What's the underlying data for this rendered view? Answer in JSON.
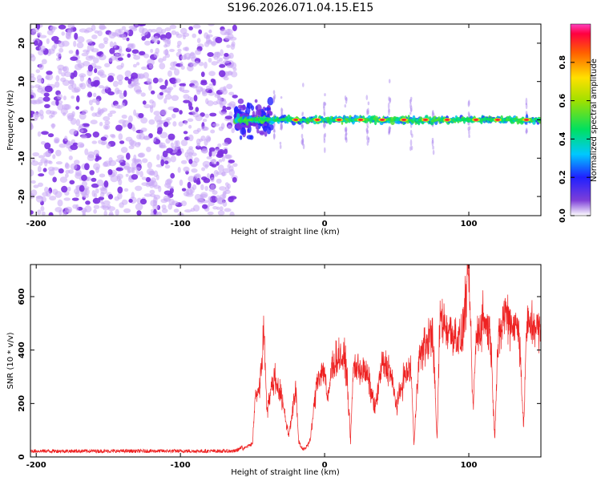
{
  "title": "S196.2026.071.04.15.E15",
  "colors": {
    "snr_line": "#ee2222",
    "noise_dots": "#a855f7",
    "axis": "#000000"
  },
  "chart_data": [
    {
      "type": "heatmap",
      "xlabel": "Height of straight line (km)",
      "ylabel": "Frequency (Hz)",
      "xlim": [
        -204,
        150
      ],
      "ylim": [
        -25,
        25
      ],
      "xticks": [
        -200,
        -100,
        0,
        100
      ],
      "yticks": [
        -20,
        -10,
        0,
        10,
        20
      ],
      "colorbar": {
        "label": "Normalized spectral amplitude",
        "range": [
          0,
          1
        ],
        "ticks": [
          0.0,
          0.2,
          0.4,
          0.6,
          0.8
        ],
        "tick_labels": [
          "0.0",
          "0.2",
          "0.4",
          "0.6",
          "0.8"
        ],
        "colormap": "rainbow (purple to red)"
      },
      "features": {
        "noise_region_x": [
          -204,
          -62
        ],
        "noise_level": 0.15,
        "onset_x": -62,
        "signal_line_freq_hz": 0,
        "signal_start_x": -62,
        "hot_spots_x": [
          -20,
          -5,
          10,
          25,
          40,
          55,
          70,
          85,
          105,
          120,
          140
        ],
        "hot_spot_amplitude": 0.95
      }
    },
    {
      "type": "line",
      "xlabel": "Height of straight line (km)",
      "ylabel": "SNR (10 * v/v)",
      "xlim": [
        -204,
        150
      ],
      "ylim": [
        0,
        720
      ],
      "xticks": [
        -200,
        -100,
        0,
        100
      ],
      "yticks": [
        0,
        200,
        400,
        600
      ],
      "series": [
        {
          "x": [
            -204,
            -180,
            -150,
            -120,
            -90,
            -62,
            -50,
            -48,
            -45,
            -42,
            -40,
            -35,
            -30,
            -25,
            -20,
            -18,
            -15,
            -10,
            -5,
            0,
            2,
            5,
            10,
            15,
            18,
            20,
            25,
            30,
            35,
            40,
            45,
            50,
            55,
            60,
            62,
            65,
            70,
            75,
            78,
            80,
            85,
            90,
            95,
            100,
            103,
            105,
            110,
            115,
            118,
            120,
            125,
            130,
            135,
            138,
            140,
            145,
            150
          ],
          "y": [
            15,
            15,
            15,
            15,
            15,
            15,
            50,
            230,
            260,
            470,
            180,
            300,
            230,
            80,
            250,
            60,
            20,
            60,
            300,
            330,
            200,
            340,
            380,
            350,
            60,
            340,
            330,
            300,
            180,
            350,
            330,
            190,
            300,
            330,
            40,
            360,
            420,
            470,
            60,
            530,
            480,
            460,
            430,
            700,
            170,
            440,
            520,
            460,
            70,
            400,
            550,
            500,
            480,
            100,
            480,
            500,
            460
          ]
        }
      ]
    }
  ]
}
